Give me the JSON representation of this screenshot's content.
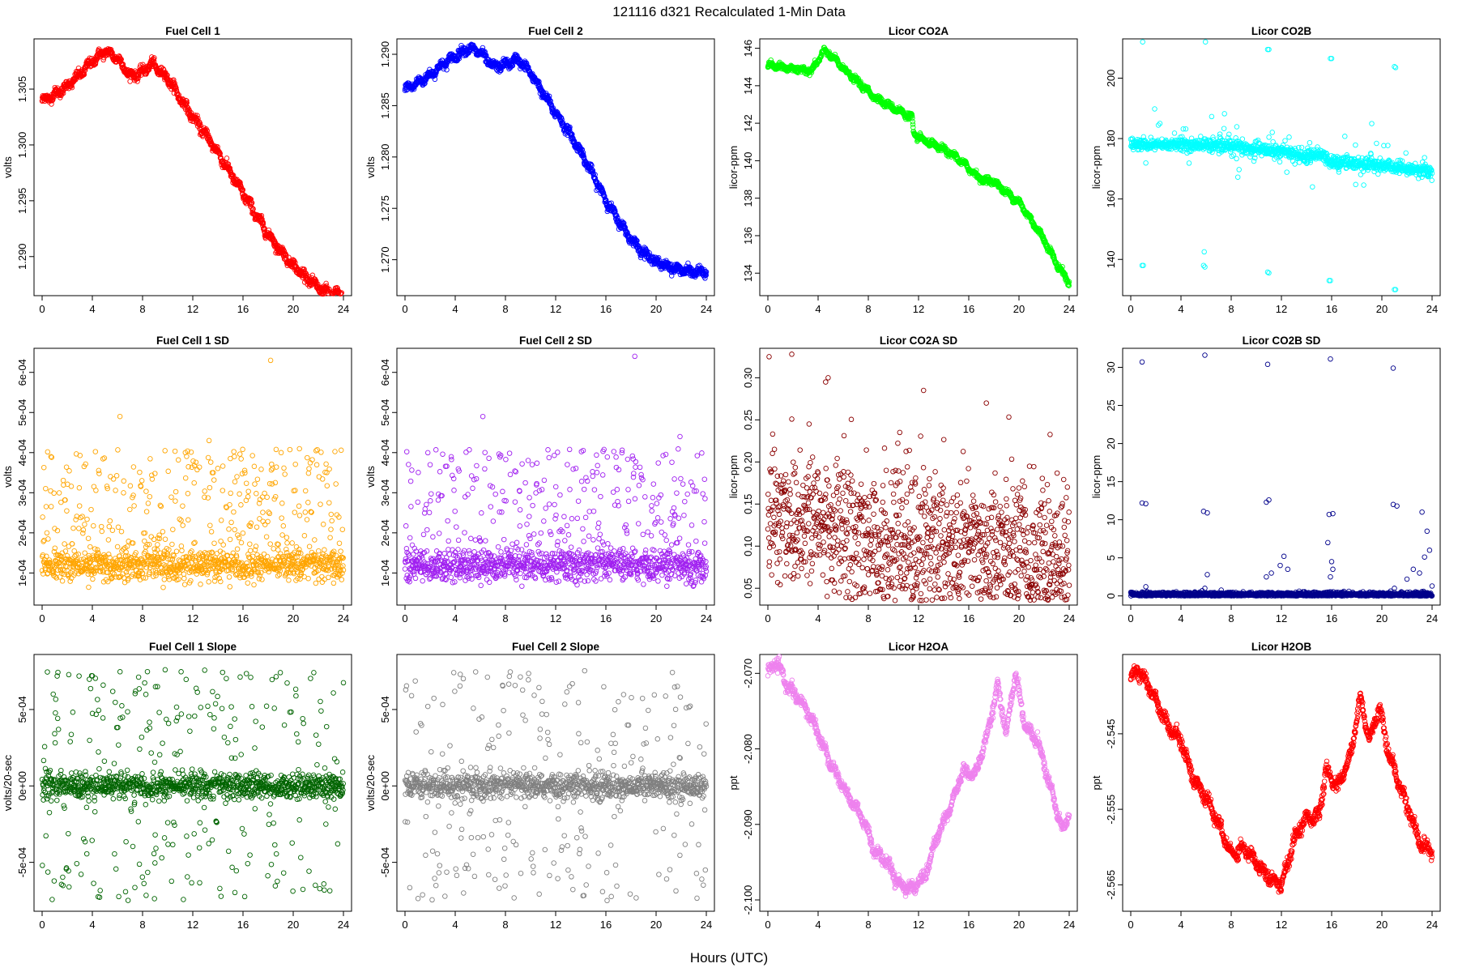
{
  "figure": {
    "title": "121116   d321   Recalculated 1-Min Data",
    "xlabel": "Hours (UTC)"
  },
  "chart_data": [
    {
      "type": "scatter",
      "title": "Fuel Cell 1",
      "ylabel": "volts",
      "color": "#ff0000",
      "xlim": [
        0,
        24
      ],
      "ylim": [
        1.2865,
        1.3095
      ],
      "xticks": [
        "0",
        "4",
        "8",
        "12",
        "16",
        "20",
        "24"
      ],
      "yticks": [
        1.29,
        1.295,
        1.3,
        1.305
      ],
      "ytick_labels": [
        "1.290",
        "1.295",
        "1.300",
        "1.305"
      ],
      "pattern": "smooth",
      "knots": [
        [
          0,
          1.304
        ],
        [
          1,
          1.3045
        ],
        [
          2,
          1.3053
        ],
        [
          3,
          1.3063
        ],
        [
          4,
          1.3075
        ],
        [
          5,
          1.3084
        ],
        [
          6,
          1.3078
        ],
        [
          7,
          1.3062
        ],
        [
          8,
          1.3065
        ],
        [
          8.7,
          1.3073
        ],
        [
          10,
          1.306
        ],
        [
          11,
          1.3042
        ],
        [
          12,
          1.3025
        ],
        [
          13,
          1.301
        ],
        [
          14,
          1.2993
        ],
        [
          15,
          1.2975
        ],
        [
          16,
          1.2957
        ],
        [
          17,
          1.2938
        ],
        [
          18,
          1.292
        ],
        [
          19,
          1.2905
        ],
        [
          20,
          1.2892
        ],
        [
          21,
          1.2882
        ],
        [
          22,
          1.2872
        ],
        [
          23,
          1.2867
        ],
        [
          24,
          1.2866
        ]
      ],
      "noise": 0.0004
    },
    {
      "type": "scatter",
      "title": "Fuel Cell 2",
      "ylabel": "volts",
      "color": "#0000ff",
      "xlim": [
        0,
        24
      ],
      "ylim": [
        1.2665,
        1.2915
      ],
      "xticks": [
        "0",
        "4",
        "8",
        "12",
        "16",
        "20",
        "24"
      ],
      "yticks": [
        1.27,
        1.275,
        1.28,
        1.285,
        1.29
      ],
      "ytick_labels": [
        "1.270",
        "1.275",
        "1.280",
        "1.285",
        "1.290"
      ],
      "pattern": "smooth",
      "knots": [
        [
          0,
          1.2866
        ],
        [
          1,
          1.2872
        ],
        [
          2,
          1.288
        ],
        [
          3,
          1.289
        ],
        [
          4,
          1.2898
        ],
        [
          5,
          1.2906
        ],
        [
          6,
          1.2902
        ],
        [
          7,
          1.2888
        ],
        [
          8,
          1.289
        ],
        [
          9,
          1.2895
        ],
        [
          10,
          1.2882
        ],
        [
          11,
          1.2862
        ],
        [
          12,
          1.2843
        ],
        [
          13,
          1.2825
        ],
        [
          14,
          1.2805
        ],
        [
          15,
          1.2782
        ],
        [
          16,
          1.2758
        ],
        [
          17,
          1.2738
        ],
        [
          18,
          1.272
        ],
        [
          19,
          1.2707
        ],
        [
          20,
          1.2698
        ],
        [
          21,
          1.2693
        ],
        [
          22,
          1.269
        ],
        [
          23,
          1.2688
        ],
        [
          24,
          1.2688
        ]
      ],
      "noise": 0.0004
    },
    {
      "type": "scatter",
      "title": "Licor CO2A",
      "ylabel": "licor-ppm",
      "color": "#00ff00",
      "xlim": [
        0,
        24
      ],
      "ylim": [
        132.8,
        146.5
      ],
      "xticks": [
        "0",
        "4",
        "8",
        "12",
        "16",
        "20",
        "24"
      ],
      "yticks": [
        134,
        136,
        138,
        140,
        142,
        144,
        146
      ],
      "ytick_labels": [
        "134",
        "136",
        "138",
        "140",
        "142",
        "144",
        "146"
      ],
      "pattern": "smooth",
      "knots": [
        [
          0,
          145.1
        ],
        [
          2,
          144.9
        ],
        [
          3.5,
          144.8
        ],
        [
          4.5,
          145.9
        ],
        [
          5.5,
          145.3
        ],
        [
          6.5,
          144.6
        ],
        [
          7.5,
          144.0
        ],
        [
          8.5,
          143.4
        ],
        [
          9.5,
          143.0
        ],
        [
          11.5,
          142.3
        ],
        [
          11.6,
          141.4
        ],
        [
          13,
          140.9
        ],
        [
          14,
          140.6
        ],
        [
          15,
          140.2
        ],
        [
          16,
          139.6
        ],
        [
          17,
          139.0
        ],
        [
          18,
          138.9
        ],
        [
          19,
          138.3
        ],
        [
          20,
          137.8
        ],
        [
          21,
          136.8
        ],
        [
          22,
          135.8
        ],
        [
          23,
          134.5
        ],
        [
          24,
          133.5
        ]
      ],
      "noise": 0.15
    },
    {
      "type": "scatter",
      "title": "Licor CO2B",
      "ylabel": "licor-ppm",
      "color": "#00ffff",
      "xlim": [
        0,
        24
      ],
      "ylim": [
        128,
        213
      ],
      "xticks": [
        "0",
        "4",
        "8",
        "12",
        "16",
        "20",
        "24"
      ],
      "yticks": [
        140,
        160,
        180,
        200
      ],
      "ytick_labels": [
        "140",
        "160",
        "180",
        "200"
      ],
      "pattern": "spiky",
      "knots": [
        [
          0,
          178
        ],
        [
          4,
          178
        ],
        [
          5.7,
          178
        ],
        [
          6,
          178
        ],
        [
          9,
          177
        ],
        [
          11,
          176
        ],
        [
          12,
          176
        ],
        [
          14,
          174
        ],
        [
          15,
          175
        ],
        [
          16,
          172
        ],
        [
          18,
          172
        ],
        [
          20,
          171
        ],
        [
          22,
          170
        ],
        [
          24,
          169
        ]
      ],
      "noise": 1.0,
      "outliers": [
        [
          0.9,
          212.5
        ],
        [
          0.95,
          212
        ],
        [
          5.9,
          212.5
        ],
        [
          5.95,
          212
        ],
        [
          10.9,
          209.5
        ],
        [
          11.0,
          209.5
        ],
        [
          15.9,
          206.5
        ],
        [
          16.0,
          206.5
        ],
        [
          21.0,
          203.8
        ],
        [
          21.1,
          203.5
        ],
        [
          0.9,
          138
        ],
        [
          1.0,
          138
        ],
        [
          5.8,
          138
        ],
        [
          5.9,
          137.5
        ],
        [
          5.85,
          142.5
        ],
        [
          10.9,
          135.8
        ],
        [
          11.0,
          135.5
        ],
        [
          15.8,
          133
        ],
        [
          15.9,
          133
        ],
        [
          21.0,
          130
        ],
        [
          21.1,
          130
        ]
      ]
    },
    {
      "type": "scatter",
      "title": "Fuel Cell 1 SD",
      "ylabel": "volts",
      "color": "#ffa500",
      "xlim": [
        0,
        24
      ],
      "ylim": [
        2e-05,
        0.00066
      ],
      "xticks": [
        "0",
        "4",
        "8",
        "12",
        "16",
        "20",
        "24"
      ],
      "yticks": [
        0.0001,
        0.0002,
        0.0003,
        0.0004,
        0.0005,
        0.0006
      ],
      "ytick_labels": [
        "1e-04",
        "2e-04",
        "3e-04",
        "4e-04",
        "5e-04",
        "6e-04"
      ],
      "pattern": "band",
      "base": 0.00012,
      "spread": 2e-05,
      "hi_range": [
        0.00017,
        0.00041
      ],
      "outliers": [
        [
          6.2,
          0.00049
        ],
        [
          18.2,
          0.00063
        ],
        [
          13.3,
          0.00043
        ]
      ]
    },
    {
      "type": "scatter",
      "title": "Fuel Cell 2 SD",
      "ylabel": "volts",
      "color": "#a020f0",
      "xlim": [
        0,
        24
      ],
      "ylim": [
        2e-05,
        0.00066
      ],
      "xticks": [
        "0",
        "4",
        "8",
        "12",
        "16",
        "20",
        "24"
      ],
      "yticks": [
        0.0001,
        0.0002,
        0.0003,
        0.0004,
        0.0005,
        0.0006
      ],
      "ytick_labels": [
        "1e-04",
        "2e-04",
        "3e-04",
        "4e-04",
        "5e-04",
        "6e-04"
      ],
      "pattern": "band",
      "base": 0.00012,
      "spread": 2e-05,
      "hi_range": [
        0.00017,
        0.00041
      ],
      "outliers": [
        [
          6.2,
          0.00049
        ],
        [
          18.3,
          0.00064
        ],
        [
          21.9,
          0.00044
        ]
      ]
    },
    {
      "type": "scatter",
      "title": "Licor CO2A SD",
      "ylabel": "licor-ppm",
      "color": "#8b0000",
      "xlim": [
        0,
        24
      ],
      "ylim": [
        0.03,
        0.335
      ],
      "xticks": [
        "0",
        "4",
        "8",
        "12",
        "16",
        "20",
        "24"
      ],
      "yticks": [
        0.05,
        0.1,
        0.15,
        0.2,
        0.25,
        0.3
      ],
      "ytick_labels": [
        "0.05",
        "0.10",
        "0.15",
        "0.20",
        "0.25",
        "0.30"
      ],
      "pattern": "cloud",
      "knots": [
        [
          0,
          0.14
        ],
        [
          4,
          0.13
        ],
        [
          8,
          0.11
        ],
        [
          12,
          0.1
        ],
        [
          16,
          0.1
        ],
        [
          20,
          0.09
        ],
        [
          24,
          0.08
        ]
      ],
      "noise": 0.045,
      "outliers": [
        [
          0.1,
          0.325
        ],
        [
          1.9,
          0.328
        ],
        [
          4.8,
          0.3
        ],
        [
          4.6,
          0.295
        ],
        [
          12.4,
          0.285
        ],
        [
          17.4,
          0.27
        ],
        [
          10.5,
          0.235
        ]
      ]
    },
    {
      "type": "scatter",
      "title": "Licor CO2B SD",
      "ylabel": "licor-ppm",
      "color": "#00008b",
      "xlim": [
        0,
        24
      ],
      "ylim": [
        -1.2,
        32.5
      ],
      "xticks": [
        "0",
        "4",
        "8",
        "12",
        "16",
        "20",
        "24"
      ],
      "yticks": [
        0,
        5,
        10,
        15,
        20,
        25,
        30
      ],
      "ytick_labels": [
        "0",
        "5",
        "10",
        "15",
        "20",
        "25",
        "30"
      ],
      "pattern": "base",
      "base": 0.2,
      "spread": 0.25,
      "outliers": [
        [
          0.9,
          30.7
        ],
        [
          5.9,
          31.6
        ],
        [
          10.9,
          30.4
        ],
        [
          15.9,
          31.1
        ],
        [
          20.9,
          29.9
        ],
        [
          0.9,
          12.2
        ],
        [
          1.2,
          12.1
        ],
        [
          5.8,
          11.1
        ],
        [
          6.1,
          10.9
        ],
        [
          10.8,
          12.3
        ],
        [
          11.0,
          12.6
        ],
        [
          15.8,
          10.7
        ],
        [
          16.1,
          10.8
        ],
        [
          20.9,
          12.0
        ],
        [
          21.2,
          11.8
        ],
        [
          23.2,
          11.0
        ],
        [
          12.2,
          5.2
        ],
        [
          11.9,
          4.0
        ],
        [
          16.0,
          4.5
        ],
        [
          23.6,
          8.5
        ],
        [
          23.8,
          6.0
        ],
        [
          23.4,
          5.1
        ],
        [
          22.5,
          3.5
        ],
        [
          10.8,
          2.5
        ],
        [
          11.2,
          3.0
        ],
        [
          12.5,
          3.5
        ],
        [
          1.2,
          1.2
        ],
        [
          5.9,
          1.0
        ],
        [
          6.1,
          2.8
        ],
        [
          15.7,
          7.0
        ],
        [
          16.1,
          3.5
        ],
        [
          15.9,
          2.5
        ],
        [
          21.0,
          1.0
        ],
        [
          22.0,
          2.2
        ],
        [
          23.0,
          3.0
        ],
        [
          24.0,
          1.3
        ]
      ]
    },
    {
      "type": "scatter",
      "title": "Fuel Cell 1 Slope",
      "ylabel": "volts/20-sec",
      "color": "#006400",
      "xlim": [
        0,
        24
      ],
      "ylim": [
        -0.00082,
        0.00086
      ],
      "xticks": [
        "0",
        "4",
        "8",
        "12",
        "16",
        "20",
        "24"
      ],
      "yticks": [
        -0.0005,
        0.0,
        0.0005
      ],
      "ytick_labels": [
        "-5e-04",
        "0e+00",
        "5e-04"
      ],
      "pattern": "slope",
      "base": 0.0,
      "spread": 4e-05,
      "hi_range": [
        -0.00075,
        0.00076
      ],
      "outliers": [
        [
          4.0,
          0.00072
        ],
        [
          5.9,
          0.00085
        ],
        [
          9.8,
          0.00076
        ]
      ]
    },
    {
      "type": "scatter",
      "title": "Fuel Cell 2 Slope",
      "ylabel": "volts/20-sec",
      "color": "#808080",
      "xlim": [
        0,
        24
      ],
      "ylim": [
        -0.00082,
        0.00086
      ],
      "xticks": [
        "0",
        "4",
        "8",
        "12",
        "16",
        "20",
        "24"
      ],
      "yticks": [
        -0.0005,
        0.0,
        0.0005
      ],
      "ytick_labels": [
        "-5e-04",
        "0e+00",
        "5e-04"
      ],
      "pattern": "slope",
      "base": 0.0,
      "spread": 4e-05,
      "hi_range": [
        -0.00075,
        0.00076
      ],
      "outliers": [
        [
          6.3,
          0.00086
        ],
        [
          4.4,
          0.00073
        ],
        [
          16.1,
          -0.00075
        ]
      ]
    },
    {
      "type": "scatter",
      "title": "Licor H2OA",
      "ylabel": "ppt",
      "color": "#ee82ee",
      "xlim": [
        0,
        24
      ],
      "ylim": [
        -2.1015,
        -2.0675
      ],
      "xticks": [
        "0",
        "4",
        "8",
        "12",
        "16",
        "20",
        "24"
      ],
      "yticks": [
        -2.1,
        -2.09,
        -2.08,
        -2.07
      ],
      "ytick_labels": [
        "-2.100",
        "-2.090",
        "-2.080",
        "-2.070"
      ],
      "pattern": "smooth",
      "knots": [
        [
          0,
          -2.07
        ],
        [
          0.7,
          -2.0685
        ],
        [
          1.5,
          -2.0715
        ],
        [
          2.5,
          -2.0735
        ],
        [
          3.5,
          -2.076
        ],
        [
          4.5,
          -2.08
        ],
        [
          5.5,
          -2.0835
        ],
        [
          6.5,
          -2.0865
        ],
        [
          7.5,
          -2.089
        ],
        [
          8.5,
          -2.0935
        ],
        [
          9.5,
          -2.095
        ],
        [
          10.5,
          -2.098
        ],
        [
          11.5,
          -2.0985
        ],
        [
          12.5,
          -2.097
        ],
        [
          13.5,
          -2.0915
        ],
        [
          14.5,
          -2.088
        ],
        [
          15.5,
          -2.083
        ],
        [
          16.5,
          -2.0835
        ],
        [
          17.5,
          -2.078
        ],
        [
          18.3,
          -2.0715
        ],
        [
          19.0,
          -2.078
        ],
        [
          19.7,
          -2.07
        ],
        [
          20.5,
          -2.077
        ],
        [
          21.5,
          -2.079
        ],
        [
          22.5,
          -2.085
        ],
        [
          23.5,
          -2.091
        ],
        [
          24,
          -2.0885
        ]
      ],
      "noise": 0.0007
    },
    {
      "type": "scatter",
      "title": "Licor H2OB",
      "ylabel": "ppt",
      "color": "#ff0000",
      "xlim": [
        0,
        24
      ],
      "ylim": [
        -2.5685,
        -2.5345
      ],
      "xticks": [
        "0",
        "4",
        "8",
        "12",
        "16",
        "20",
        "24"
      ],
      "yticks": [
        -2.565,
        -2.555,
        -2.545
      ],
      "ytick_labels": [
        "-2.565",
        "-2.555",
        "-2.545"
      ],
      "pattern": "smooth",
      "knots": [
        [
          0,
          -2.5375
        ],
        [
          0.5,
          -2.5365
        ],
        [
          1,
          -2.5375
        ],
        [
          2,
          -2.5405
        ],
        [
          3,
          -2.544
        ],
        [
          4,
          -2.546
        ],
        [
          5,
          -2.551
        ],
        [
          6,
          -2.5535
        ],
        [
          7,
          -2.557
        ],
        [
          8,
          -2.561
        ],
        [
          9,
          -2.56
        ],
        [
          10,
          -2.562
        ],
        [
          11,
          -2.564
        ],
        [
          12,
          -2.565
        ],
        [
          13,
          -2.559
        ],
        [
          14,
          -2.556
        ],
        [
          15,
          -2.556
        ],
        [
          15.5,
          -2.55
        ],
        [
          16.5,
          -2.552
        ],
        [
          17.5,
          -2.548
        ],
        [
          18.3,
          -2.54
        ],
        [
          19,
          -2.546
        ],
        [
          19.8,
          -2.5415
        ],
        [
          20.5,
          -2.5475
        ],
        [
          21.5,
          -2.552
        ],
        [
          22.5,
          -2.557
        ],
        [
          23.2,
          -2.56
        ],
        [
          24,
          -2.5605
        ]
      ],
      "noise": 0.0008
    }
  ]
}
